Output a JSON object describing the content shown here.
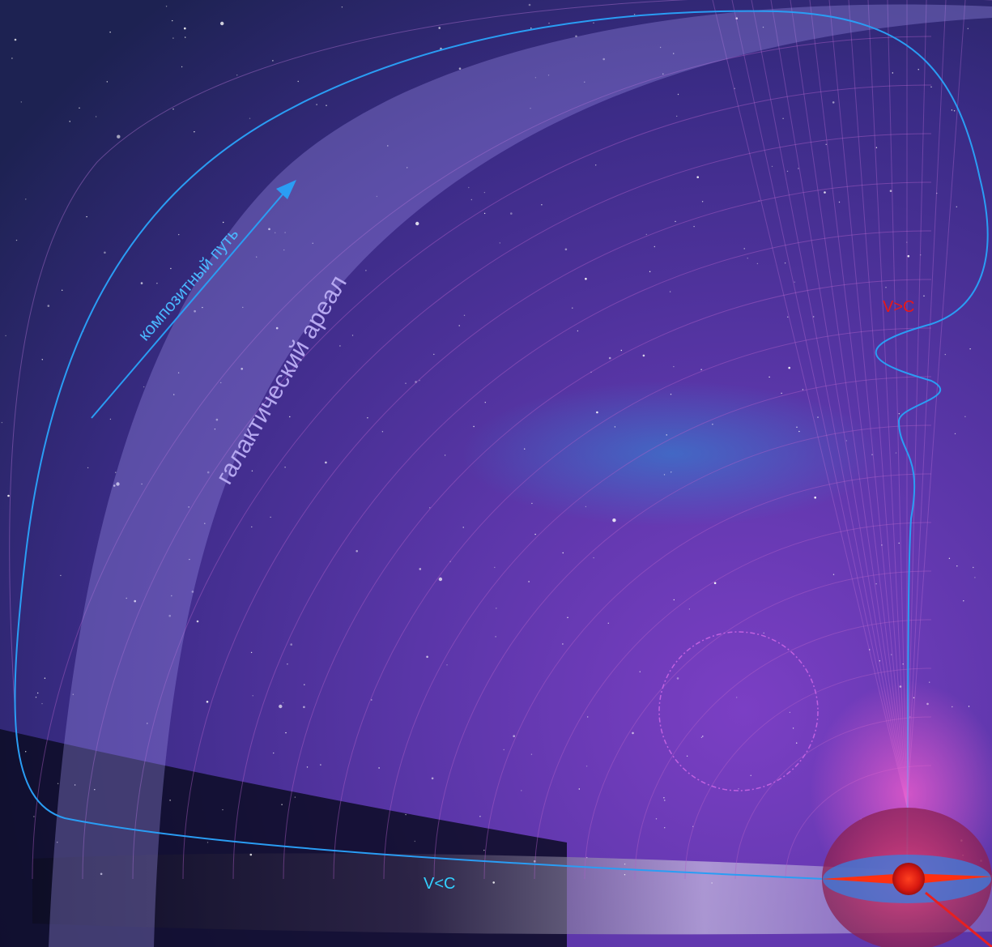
{
  "labels": {
    "composite_path": "композитный путь",
    "galactic_area": "галактический ареал",
    "faster_than_light": "V>C",
    "slower_than_light": "V<C"
  },
  "colors": {
    "background_top": "#2a1f5e",
    "background_mid": "#3b2d8a",
    "background_violet": "#7a3cc0",
    "composite_path": "#2a9df4",
    "galactic_band": "#8d7ee0",
    "contour_lines": "#b060c8",
    "faster_label": "#e81818",
    "slower_label": "#33d0ff",
    "core_red": "#e8281a",
    "dashed_circle": "#c060e0"
  }
}
